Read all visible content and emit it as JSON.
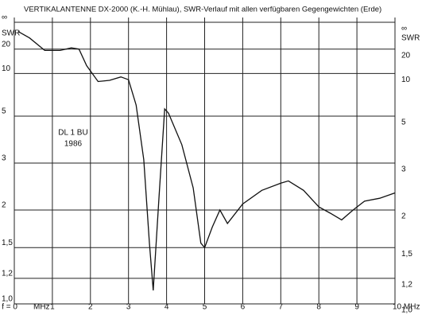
{
  "chart_data": {
    "type": "line",
    "title": "VERTIKALANTENNE  DX-2000 (K.-H. Mühlau), SWR-Verlauf mit allen verfügbaren Gegengewichten (Erde)",
    "y_label": "SWR",
    "x_unit": "MHz",
    "annotation": [
      "DL 1 BU",
      "1986"
    ],
    "yscale": "reflection",
    "grid": true,
    "x": [
      0.1,
      0.4,
      0.8,
      1.2,
      1.5,
      1.7,
      1.9,
      2.2,
      2.5,
      2.8,
      3.0,
      3.2,
      3.4,
      3.55,
      3.65,
      3.8,
      3.95,
      4.05,
      4.4,
      4.7,
      4.9,
      5.0,
      5.2,
      5.4,
      5.6,
      6.0,
      6.5,
      7.0,
      7.2,
      7.6,
      8.0,
      8.3,
      8.6,
      8.9,
      9.2,
      9.6,
      10
    ],
    "series": [
      {
        "color": "#111111",
        "values": [
          60,
          35,
          19,
          19,
          21,
          20,
          12,
          8.5,
          8.7,
          9.3,
          8.8,
          5.8,
          3.1,
          1.55,
          1.1,
          2.2,
          5.5,
          5.2,
          3.6,
          2.4,
          1.55,
          1.5,
          1.75,
          2.0,
          1.8,
          2.1,
          2.35,
          2.5,
          2.55,
          2.35,
          2.05,
          1.95,
          1.85,
          2.0,
          2.15,
          2.2,
          2.3
        ]
      }
    ],
    "xlim": [
      0,
      10
    ],
    "xticks": [
      {
        "value": 0,
        "label": "f = 0"
      },
      1,
      2,
      3,
      4,
      5,
      6,
      7,
      8,
      9,
      {
        "value": 10,
        "label": "10 MHz"
      }
    ],
    "ylim": [
      1,
      null
    ],
    "yticks": [
      {
        "value": 1,
        "label": "1,0"
      },
      {
        "value": 1.2,
        "label": "1,2"
      },
      {
        "value": 1.5,
        "label": "1,5"
      },
      2,
      3,
      5,
      10,
      20,
      {
        "value": null,
        "label": "∞"
      }
    ]
  }
}
